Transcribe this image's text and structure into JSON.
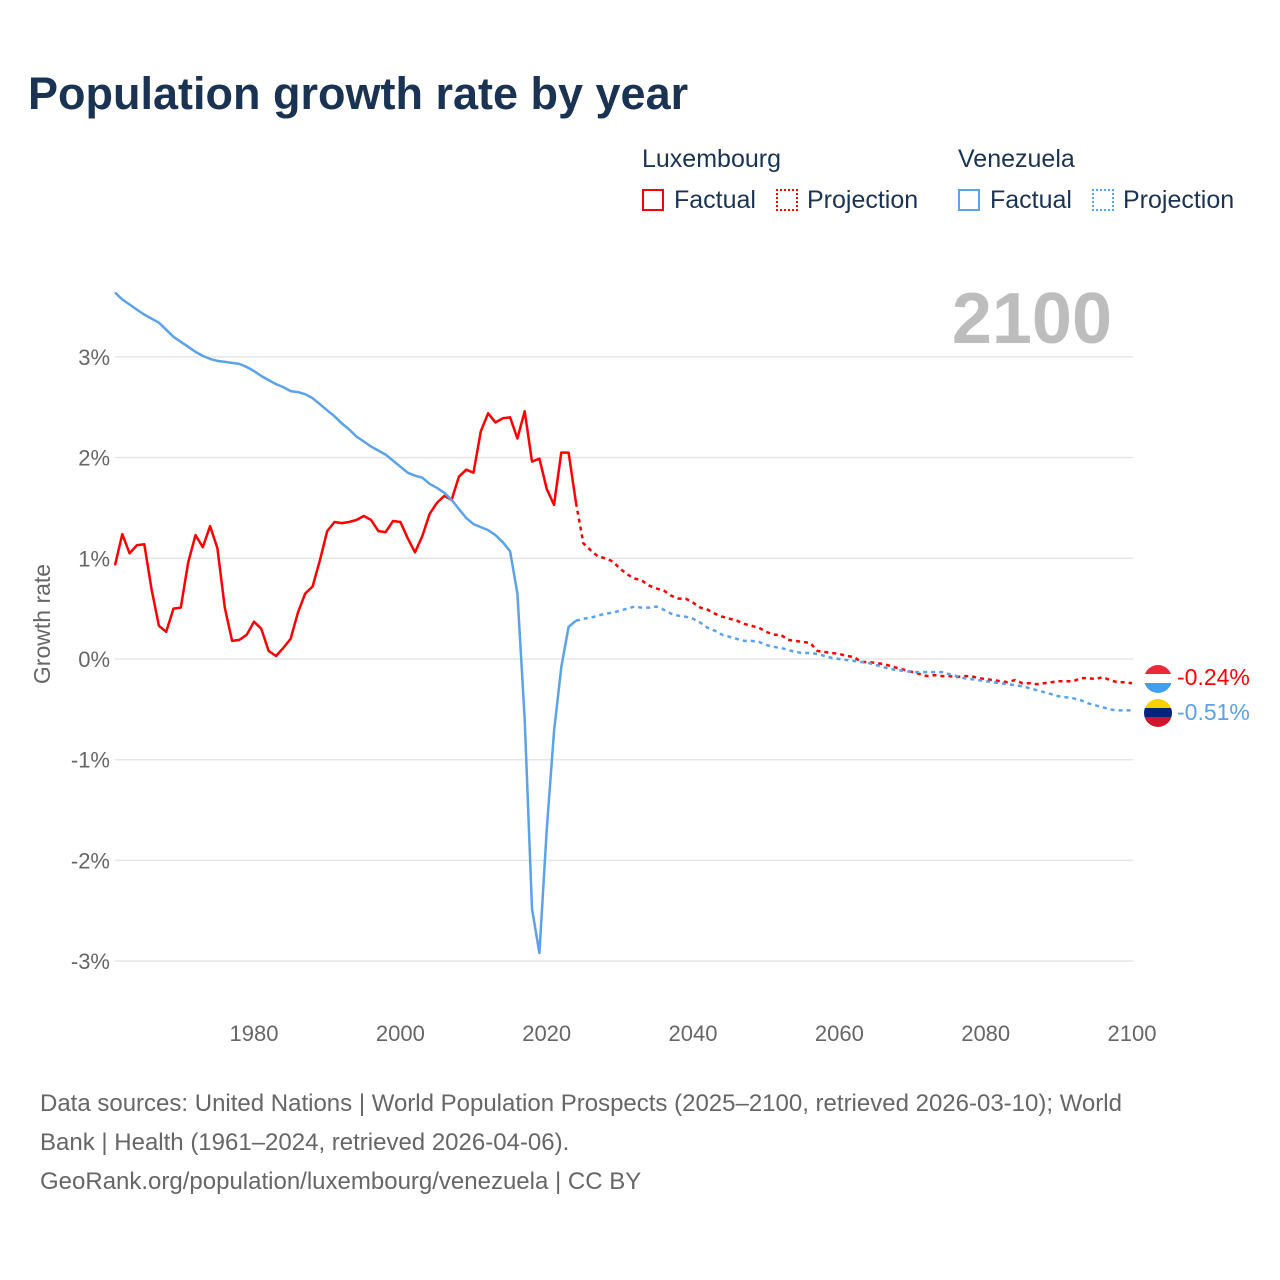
{
  "title": "Population growth rate by year",
  "legend": {
    "groups": [
      {
        "name": "Luxembourg",
        "factual": "Factual",
        "projection": "Projection",
        "color": "#ff0000"
      },
      {
        "name": "Venezuela",
        "factual": "Factual",
        "projection": "Projection",
        "color": "#5aa2ea"
      }
    ]
  },
  "year_label": "2100",
  "footer": {
    "line1": "Data sources: United Nations | World Population Prospects (2025–2100, retrieved 2026-03-10); World",
    "line2": "Bank | Health (1961–2024, retrieved 2026-04-06).",
    "line3": "GeoRank.org/population/luxembourg/venezuela | CC BY"
  },
  "chart_data": {
    "type": "line",
    "title": "Population growth rate by year",
    "xlabel": "",
    "ylabel": "Growth rate",
    "xlim": [
      1961,
      2100
    ],
    "ylim": [
      -3.5,
      3.8
    ],
    "x_ticks": [
      "1980",
      "2000",
      "2020",
      "2040",
      "2060",
      "2080",
      "2100"
    ],
    "y_ticks": [
      {
        "v": 3,
        "label": "3%"
      },
      {
        "v": 2,
        "label": "2%"
      },
      {
        "v": 1,
        "label": "1%"
      },
      {
        "v": 0,
        "label": "0%"
      },
      {
        "v": -1,
        "label": "-1%"
      },
      {
        "v": -2,
        "label": "-2%"
      },
      {
        "v": -3,
        "label": "-3%"
      }
    ],
    "grid": true,
    "series": [
      {
        "name": "Luxembourg",
        "color": "#ff0000",
        "end_label": "-0.24%",
        "factual_start": 1961,
        "factual": [
          0.93,
          1.24,
          1.05,
          1.13,
          1.14,
          0.69,
          0.33,
          0.27,
          0.5,
          0.51,
          0.96,
          1.23,
          1.11,
          1.32,
          1.1,
          0.51,
          0.18,
          0.19,
          0.24,
          0.37,
          0.3,
          0.08,
          0.03,
          0.11,
          0.2,
          0.46,
          0.65,
          0.72,
          0.98,
          1.27,
          1.36,
          1.35,
          1.36,
          1.38,
          1.42,
          1.38,
          1.27,
          1.26,
          1.37,
          1.36,
          1.2,
          1.06,
          1.22,
          1.44,
          1.55,
          1.62,
          1.58,
          1.81,
          1.88,
          1.85,
          2.26,
          2.44,
          2.35,
          2.39,
          2.4,
          2.19,
          2.46,
          1.96,
          1.99,
          1.69,
          1.53,
          2.05,
          2.05,
          1.55
        ],
        "projection_start": 2025,
        "projection": [
          1.15,
          1.08,
          1.02,
          1.0,
          0.97,
          0.9,
          0.84,
          0.8,
          0.78,
          0.73,
          0.7,
          0.68,
          0.63,
          0.6,
          0.6,
          0.56,
          0.51,
          0.49,
          0.45,
          0.42,
          0.4,
          0.38,
          0.35,
          0.33,
          0.31,
          0.27,
          0.24,
          0.24,
          0.19,
          0.18,
          0.17,
          0.16,
          0.08,
          0.07,
          0.06,
          0.05,
          0.03,
          0.02,
          -0.03,
          -0.03,
          -0.04,
          -0.05,
          -0.07,
          -0.09,
          -0.11,
          -0.13,
          -0.15,
          -0.17,
          -0.16,
          -0.17,
          -0.17,
          -0.18,
          -0.17,
          -0.17,
          -0.19,
          -0.2,
          -0.21,
          -0.22,
          -0.23,
          -0.21,
          -0.24,
          -0.24,
          -0.25,
          -0.24,
          -0.23,
          -0.22,
          -0.22,
          -0.22,
          -0.19,
          -0.19,
          -0.2,
          -0.18,
          -0.21,
          -0.23,
          -0.23,
          -0.24
        ]
      },
      {
        "name": "Venezuela",
        "color": "#5aa2ea",
        "end_label": "-0.51%",
        "factual_start": 1961,
        "factual": [
          3.64,
          3.57,
          3.52,
          3.47,
          3.42,
          3.38,
          3.34,
          3.27,
          3.2,
          3.15,
          3.1,
          3.05,
          3.01,
          2.98,
          2.96,
          2.95,
          2.94,
          2.93,
          2.9,
          2.86,
          2.81,
          2.77,
          2.73,
          2.7,
          2.66,
          2.65,
          2.63,
          2.59,
          2.53,
          2.47,
          2.41,
          2.34,
          2.28,
          2.21,
          2.16,
          2.11,
          2.07,
          2.03,
          1.97,
          1.91,
          1.85,
          1.82,
          1.8,
          1.74,
          1.7,
          1.65,
          1.58,
          1.49,
          1.4,
          1.34,
          1.31,
          1.28,
          1.23,
          1.16,
          1.07,
          0.65,
          -0.6,
          -2.48,
          -2.92,
          -1.7,
          -0.72,
          -0.08,
          0.32,
          0.38
        ],
        "projection_start": 2025,
        "projection": [
          0.4,
          0.41,
          0.43,
          0.45,
          0.46,
          0.48,
          0.5,
          0.52,
          0.51,
          0.51,
          0.52,
          0.49,
          0.45,
          0.43,
          0.42,
          0.4,
          0.36,
          0.31,
          0.28,
          0.24,
          0.22,
          0.2,
          0.18,
          0.18,
          0.17,
          0.14,
          0.12,
          0.11,
          0.09,
          0.07,
          0.06,
          0.06,
          0.05,
          0.03,
          0.01,
          0.0,
          -0.01,
          -0.02,
          -0.03,
          -0.04,
          -0.06,
          -0.08,
          -0.1,
          -0.11,
          -0.12,
          -0.13,
          -0.13,
          -0.13,
          -0.13,
          -0.13,
          -0.15,
          -0.17,
          -0.19,
          -0.2,
          -0.21,
          -0.22,
          -0.23,
          -0.24,
          -0.25,
          -0.26,
          -0.27,
          -0.29,
          -0.31,
          -0.33,
          -0.35,
          -0.37,
          -0.38,
          -0.39,
          -0.41,
          -0.44,
          -0.46,
          -0.48,
          -0.5,
          -0.51,
          -0.51,
          -0.51
        ]
      }
    ]
  }
}
